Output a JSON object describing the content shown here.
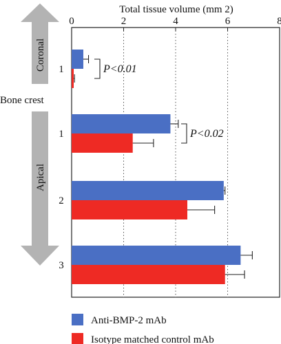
{
  "chart_data": {
    "type": "bar",
    "orientation": "horizontal",
    "xlabel": "Total tissue volume (mm 2)",
    "xlim": [
      0,
      8
    ],
    "xticks": [
      0,
      2,
      4,
      6,
      8
    ],
    "grid": "vertical dotted",
    "categories": [
      "1",
      "1",
      "2",
      "3"
    ],
    "series": [
      {
        "name": "Anti-BMP-2 mAb",
        "color": "#4a6fc4",
        "values": [
          0.45,
          3.8,
          5.85,
          6.5
        ],
        "errors": [
          0.2,
          0.3,
          0.05,
          0.45
        ]
      },
      {
        "name": "Isotype matched control mAb",
        "color": "#ee2a24",
        "values": [
          0.08,
          2.35,
          4.45,
          5.9
        ],
        "errors": [
          0.03,
          0.8,
          1.05,
          0.75
        ]
      }
    ],
    "region_labels": {
      "coronal": "Coronal",
      "bone_crest": "Bone crest",
      "apical": "Apical"
    },
    "annotations": [
      "P<0.01",
      "P<0.02"
    ],
    "legend_position": "bottom"
  }
}
